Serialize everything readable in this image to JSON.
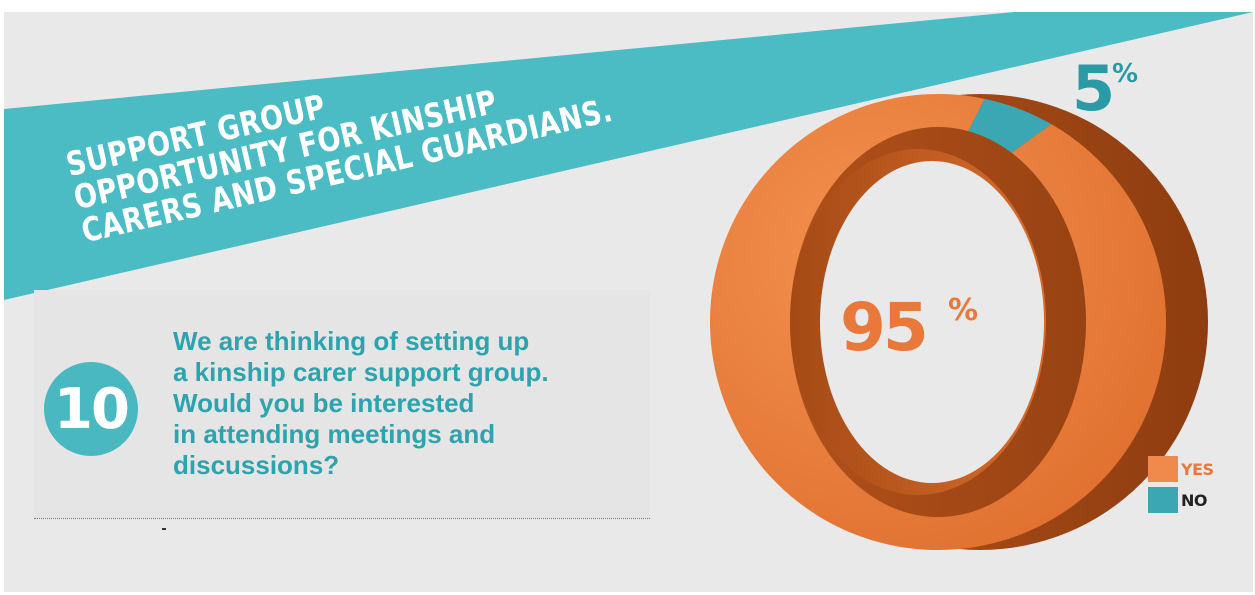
{
  "banner": {
    "lines": [
      "SUPPORT GROUP",
      "OPPORTUNITY FOR KINSHIP",
      "CARERS AND SPECIAL GUARDIANS."
    ]
  },
  "question": {
    "number": "10",
    "lines": [
      "We are thinking of setting up",
      "a kinship carer support group.",
      "Would you be interested",
      "in attending meetings and",
      "discussions?"
    ]
  },
  "colors": {
    "accent_teal": "#4cbcc4",
    "yes_orange": "#e8793a",
    "yes_orange_dark": "#b8561c",
    "no_teal": "#3ba7b3",
    "text_teal": "#2ca3ad",
    "background": "#e9e9ea"
  },
  "chart_data": {
    "type": "pie",
    "variant": "3d-donut",
    "categories": [
      "YES",
      "NO"
    ],
    "values": [
      95,
      5
    ],
    "labels": [
      "95%",
      "5%"
    ],
    "colors": [
      "#e8793a",
      "#3ba7b3"
    ],
    "legend_position": "bottom-right"
  }
}
